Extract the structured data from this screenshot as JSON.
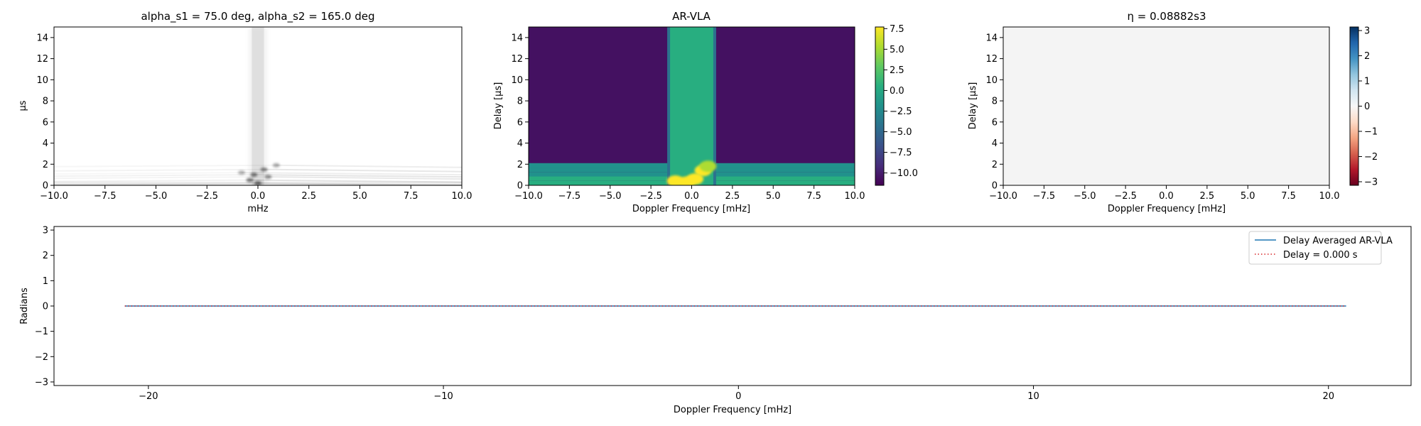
{
  "chart_data": [
    {
      "type": "heatmap",
      "panel": "top-left",
      "title": "alpha_s1 = 75.0 deg, alpha_s2 = 165.0 deg",
      "xlabel": "mHz",
      "ylabel": "μs",
      "xlim": [
        -10,
        10
      ],
      "ylim": [
        0,
        15
      ],
      "xticks": [
        -10.0,
        -7.5,
        -5.0,
        -2.5,
        0.0,
        2.5,
        5.0,
        7.5,
        10.0
      ],
      "xtick_labels": [
        "−10.0",
        "−7.5",
        "−5.0",
        "−2.5",
        "0.0",
        "2.5",
        "5.0",
        "7.5",
        "10.0"
      ],
      "yticks": [
        0,
        2,
        4,
        6,
        8,
        10,
        12,
        14
      ],
      "ytick_labels": [
        "0",
        "2",
        "4",
        "6",
        "8",
        "10",
        "12",
        "14"
      ],
      "colormap": "Greys",
      "features": {
        "vertical_streak_doppler": [
          -0.3,
          0.3
        ],
        "bright_points": [
          {
            "x": -0.4,
            "y": 0.5,
            "v": 0.9
          },
          {
            "x": -0.2,
            "y": 1.0,
            "v": 0.85
          },
          {
            "x": 0.0,
            "y": 0.2,
            "v": 0.95
          },
          {
            "x": 0.3,
            "y": 1.5,
            "v": 0.8
          },
          {
            "x": 0.5,
            "y": 0.8,
            "v": 0.75
          },
          {
            "x": 0.9,
            "y": 1.9,
            "v": 0.6
          },
          {
            "x": -0.8,
            "y": 1.2,
            "v": 0.55
          }
        ]
      }
    },
    {
      "type": "heatmap",
      "panel": "top-middle",
      "title": "AR-VLA",
      "xlabel": "Doppler Frequency [mHz]",
      "ylabel": "Delay [μs]",
      "xlim": [
        -10,
        10
      ],
      "ylim": [
        0,
        15
      ],
      "xticks": [
        -10.0,
        -7.5,
        -5.0,
        -2.5,
        0.0,
        2.5,
        5.0,
        7.5,
        10.0
      ],
      "xtick_labels": [
        "−10.0",
        "−7.5",
        "−5.0",
        "−2.5",
        "0.0",
        "2.5",
        "5.0",
        "7.5",
        "10.0"
      ],
      "yticks": [
        0,
        2,
        4,
        6,
        8,
        10,
        12,
        14
      ],
      "ytick_labels": [
        "0",
        "2",
        "4",
        "6",
        "8",
        "10",
        "12",
        "14"
      ],
      "colormap": "viridis",
      "colorbar": {
        "range": [
          -11.5,
          7.7
        ],
        "ticks": [
          7.5,
          5.0,
          2.5,
          0.0,
          -2.5,
          -5.0,
          -7.5,
          -10.0
        ],
        "tick_labels": [
          "7.5",
          "5.0",
          "2.5",
          "0.0",
          "−2.5",
          "−5.0",
          "−7.5",
          "−10.0"
        ]
      },
      "features": {
        "background_level": -10.5,
        "vertical_band": {
          "doppler": [
            -1.5,
            1.5
          ],
          "level": -0.5,
          "core_doppler": [
            -0.5,
            0.5
          ],
          "core_level": 0.5
        },
        "low_delay_band": {
          "delay": [
            0,
            2.1
          ],
          "level": -3.0
        },
        "peak_blobs": [
          {
            "x": -1.0,
            "y": 0.4,
            "v": 7.0
          },
          {
            "x": -0.3,
            "y": 0.3,
            "v": 7.5
          },
          {
            "x": 0.2,
            "y": 0.6,
            "v": 7.0
          },
          {
            "x": 0.7,
            "y": 1.4,
            "v": 6.5
          },
          {
            "x": 1.0,
            "y": 1.8,
            "v": 6.0
          }
        ]
      }
    },
    {
      "type": "heatmap",
      "panel": "top-right",
      "title": "η = 0.08882s3",
      "xlabel": "Doppler Frequency [mHz]",
      "ylabel": "Delay [μs]",
      "xlim": [
        -10,
        10
      ],
      "ylim": [
        0,
        15
      ],
      "xticks": [
        -10.0,
        -7.5,
        -5.0,
        -2.5,
        0.0,
        2.5,
        5.0,
        7.5,
        10.0
      ],
      "xtick_labels": [
        "−10.0",
        "−7.5",
        "−5.0",
        "−2.5",
        "0.0",
        "2.5",
        "5.0",
        "7.5",
        "10.0"
      ],
      "yticks": [
        0,
        2,
        4,
        6,
        8,
        10,
        12,
        14
      ],
      "ytick_labels": [
        "0",
        "2",
        "4",
        "6",
        "8",
        "10",
        "12",
        "14"
      ],
      "colormap": "RdBu",
      "colorbar": {
        "range": [
          -3.14159,
          3.14159
        ],
        "ticks": [
          3,
          2,
          1,
          0,
          -1,
          -2,
          -3
        ],
        "tick_labels": [
          "3",
          "2",
          "1",
          "0",
          "−1",
          "−2",
          "−3"
        ]
      },
      "fill_value": 0.0
    },
    {
      "type": "line",
      "panel": "bottom",
      "xlabel": "Doppler Frequency [mHz]",
      "ylabel": "Radians",
      "xlim": [
        -23.2,
        22.8
      ],
      "ylim": [
        -3.14159,
        3.14159
      ],
      "xticks": [
        -20,
        -10,
        0,
        10,
        20
      ],
      "xtick_labels": [
        "−20",
        "−10",
        "0",
        "10",
        "20"
      ],
      "yticks": [
        3,
        2,
        1,
        0,
        -1,
        -2,
        -3
      ],
      "ytick_labels": [
        "3",
        "2",
        "1",
        "0",
        "−1",
        "−2",
        "−3"
      ],
      "legend_position": "top-right",
      "series": [
        {
          "name": "Delay Averaged  AR-VLA",
          "color": "#1f77b4",
          "style": "solid",
          "x": [
            -20.8,
            20.6
          ],
          "y": [
            0,
            0
          ]
        },
        {
          "name": "Delay = 0.000 s",
          "color": "#d62728",
          "style": "dotted",
          "x": [
            -20.8,
            20.6
          ],
          "y": [
            0,
            0
          ]
        }
      ]
    }
  ]
}
